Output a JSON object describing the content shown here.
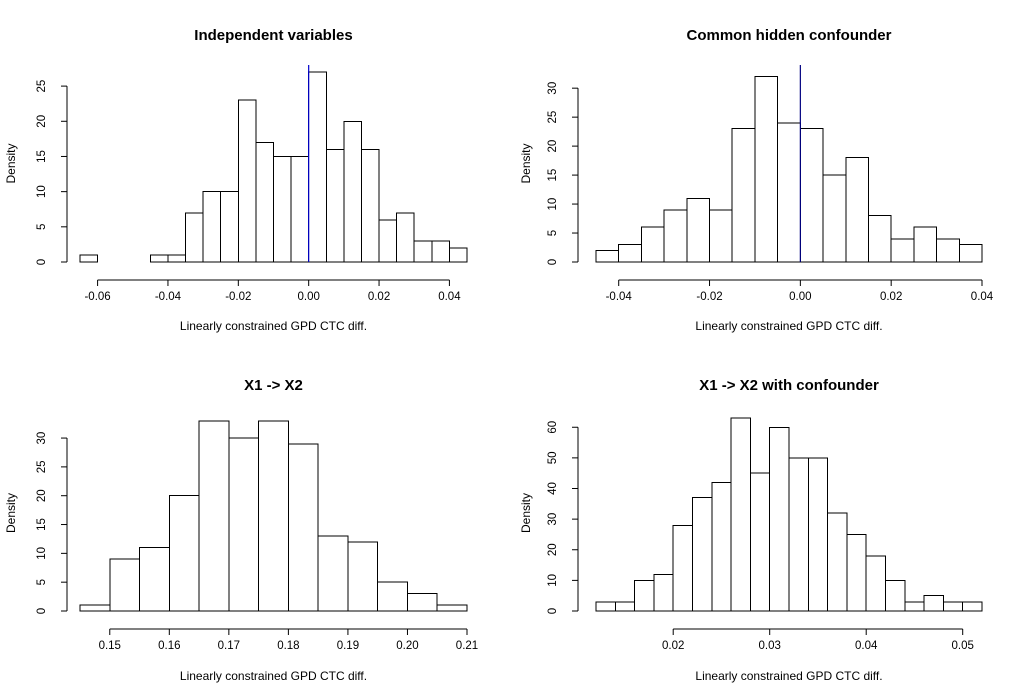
{
  "chart_data": [
    {
      "type": "bar",
      "title": "Independent variables",
      "xlabel": "Linearly constrained GPD CTC diff.",
      "ylabel": "Density",
      "bin_start": -0.065,
      "bin_width": 0.005,
      "values": [
        1,
        0,
        0,
        0,
        1,
        1,
        7,
        10,
        10,
        23,
        17,
        15,
        15,
        27,
        16,
        20,
        16,
        6,
        7,
        3,
        3,
        2
      ],
      "xlim": [
        -0.065,
        0.045
      ],
      "ylim": [
        0,
        28
      ],
      "xticks": [
        -0.06,
        -0.04,
        -0.02,
        0.0,
        0.02,
        0.04
      ],
      "xtick_labels": [
        "-0.06",
        "-0.04",
        "-0.02",
        "0.00",
        "0.02",
        "0.04"
      ],
      "yticks": [
        0,
        5,
        10,
        15,
        20,
        25
      ],
      "ytick_labels": [
        "0",
        "5",
        "10",
        "15",
        "20",
        "25"
      ],
      "vline": 0.0,
      "vline_color": "#0000cc"
    },
    {
      "type": "bar",
      "title": "Common hidden confounder",
      "xlabel": "Linearly constrained GPD CTC diff.",
      "ylabel": "Density",
      "bin_start": -0.045,
      "bin_width": 0.005,
      "values": [
        2,
        3,
        6,
        9,
        11,
        9,
        23,
        32,
        24,
        23,
        15,
        18,
        8,
        4,
        6,
        4,
        3
      ],
      "xlim": [
        -0.045,
        0.04
      ],
      "ylim": [
        0,
        34
      ],
      "xticks": [
        -0.04,
        -0.02,
        0.0,
        0.02,
        0.04
      ],
      "xtick_labels": [
        "-0.04",
        "-0.02",
        "0.00",
        "0.02",
        "0.04"
      ],
      "yticks": [
        0,
        5,
        10,
        15,
        20,
        25,
        30
      ],
      "ytick_labels": [
        "0",
        "5",
        "10",
        "15",
        "20",
        "25",
        "30"
      ],
      "vline": 0.0,
      "vline_color": "#000080"
    },
    {
      "type": "bar",
      "title": "X1 -> X2",
      "xlabel": "Linearly constrained GPD CTC diff.",
      "ylabel": "Density",
      "bin_start": 0.145,
      "bin_width": 0.005,
      "values": [
        1,
        9,
        11,
        20,
        33,
        30,
        33,
        29,
        13,
        12,
        5,
        3,
        1
      ],
      "xlim": [
        0.145,
        0.21
      ],
      "ylim": [
        0,
        34
      ],
      "xticks": [
        0.15,
        0.16,
        0.17,
        0.18,
        0.19,
        0.2,
        0.21
      ],
      "xtick_labels": [
        "0.15",
        "0.16",
        "0.17",
        "0.18",
        "0.19",
        "0.20",
        "0.21"
      ],
      "yticks": [
        0,
        5,
        10,
        15,
        20,
        25,
        30
      ],
      "ytick_labels": [
        "0",
        "5",
        "10",
        "15",
        "20",
        "25",
        "30"
      ]
    },
    {
      "type": "bar",
      "title": "X1 -> X2 with confounder",
      "xlabel": "Linearly constrained GPD CTC diff.",
      "ylabel": "Density",
      "bin_start": 0.012,
      "bin_width": 0.002,
      "values": [
        3,
        3,
        10,
        12,
        28,
        37,
        42,
        63,
        45,
        60,
        50,
        50,
        32,
        25,
        18,
        10,
        3,
        5,
        3,
        3
      ],
      "xlim": [
        0.012,
        0.052
      ],
      "ylim": [
        0,
        64
      ],
      "xticks": [
        0.02,
        0.03,
        0.04,
        0.05
      ],
      "xtick_labels": [
        "0.02",
        "0.03",
        "0.04",
        "0.05"
      ],
      "yticks": [
        0,
        10,
        20,
        30,
        40,
        50,
        60
      ],
      "ytick_labels": [
        "0",
        "10",
        "20",
        "30",
        "40",
        "50",
        "60"
      ]
    }
  ]
}
